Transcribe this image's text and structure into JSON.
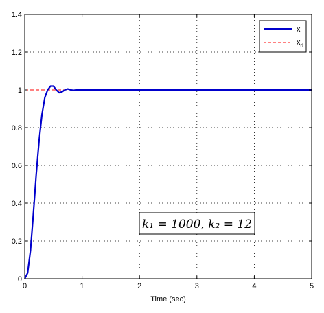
{
  "chart_data": {
    "type": "line",
    "title": "",
    "xlabel": "Time (sec)",
    "ylabel": "",
    "xlim": [
      0,
      5
    ],
    "ylim": [
      0,
      1.4
    ],
    "xticks": [
      0,
      1,
      2,
      3,
      4,
      5
    ],
    "yticks": [
      0,
      0.2,
      0.4,
      0.6,
      0.8,
      1,
      1.2,
      1.4
    ],
    "xtick_labels": [
      "0",
      "1",
      "2",
      "3",
      "4",
      "5"
    ],
    "ytick_labels": [
      "0",
      "0.2",
      "0.4",
      "0.6",
      "0.8",
      "1",
      "1.2",
      "1.4"
    ],
    "grid": true,
    "legend_position": "top-right",
    "series": [
      {
        "name": "x",
        "color": "#0000cc",
        "style": "solid",
        "x": [
          0,
          0.05,
          0.1,
          0.15,
          0.2,
          0.25,
          0.3,
          0.35,
          0.4,
          0.45,
          0.5,
          0.55,
          0.6,
          0.65,
          0.7,
          0.75,
          0.8,
          0.85,
          0.9,
          1.0,
          1.5,
          2,
          3,
          4,
          5
        ],
        "y": [
          0,
          0.03,
          0.15,
          0.34,
          0.55,
          0.73,
          0.87,
          0.96,
          1.0,
          1.02,
          1.02,
          1.0,
          0.985,
          0.99,
          1.0,
          1.005,
          1.0,
          0.998,
          1.0,
          1.0,
          1.0,
          1.0,
          1.0,
          1.0,
          1.0
        ]
      },
      {
        "name": "x_d",
        "color": "#ff0000",
        "style": "dashed",
        "x": [
          0,
          5
        ],
        "y": [
          1,
          1
        ]
      }
    ],
    "legend": {
      "entries": [
        {
          "main": "x",
          "sub": ""
        },
        {
          "main": "x",
          "sub": "d"
        }
      ]
    },
    "annotation": "k₁ = 1000, k₂ = 12"
  }
}
